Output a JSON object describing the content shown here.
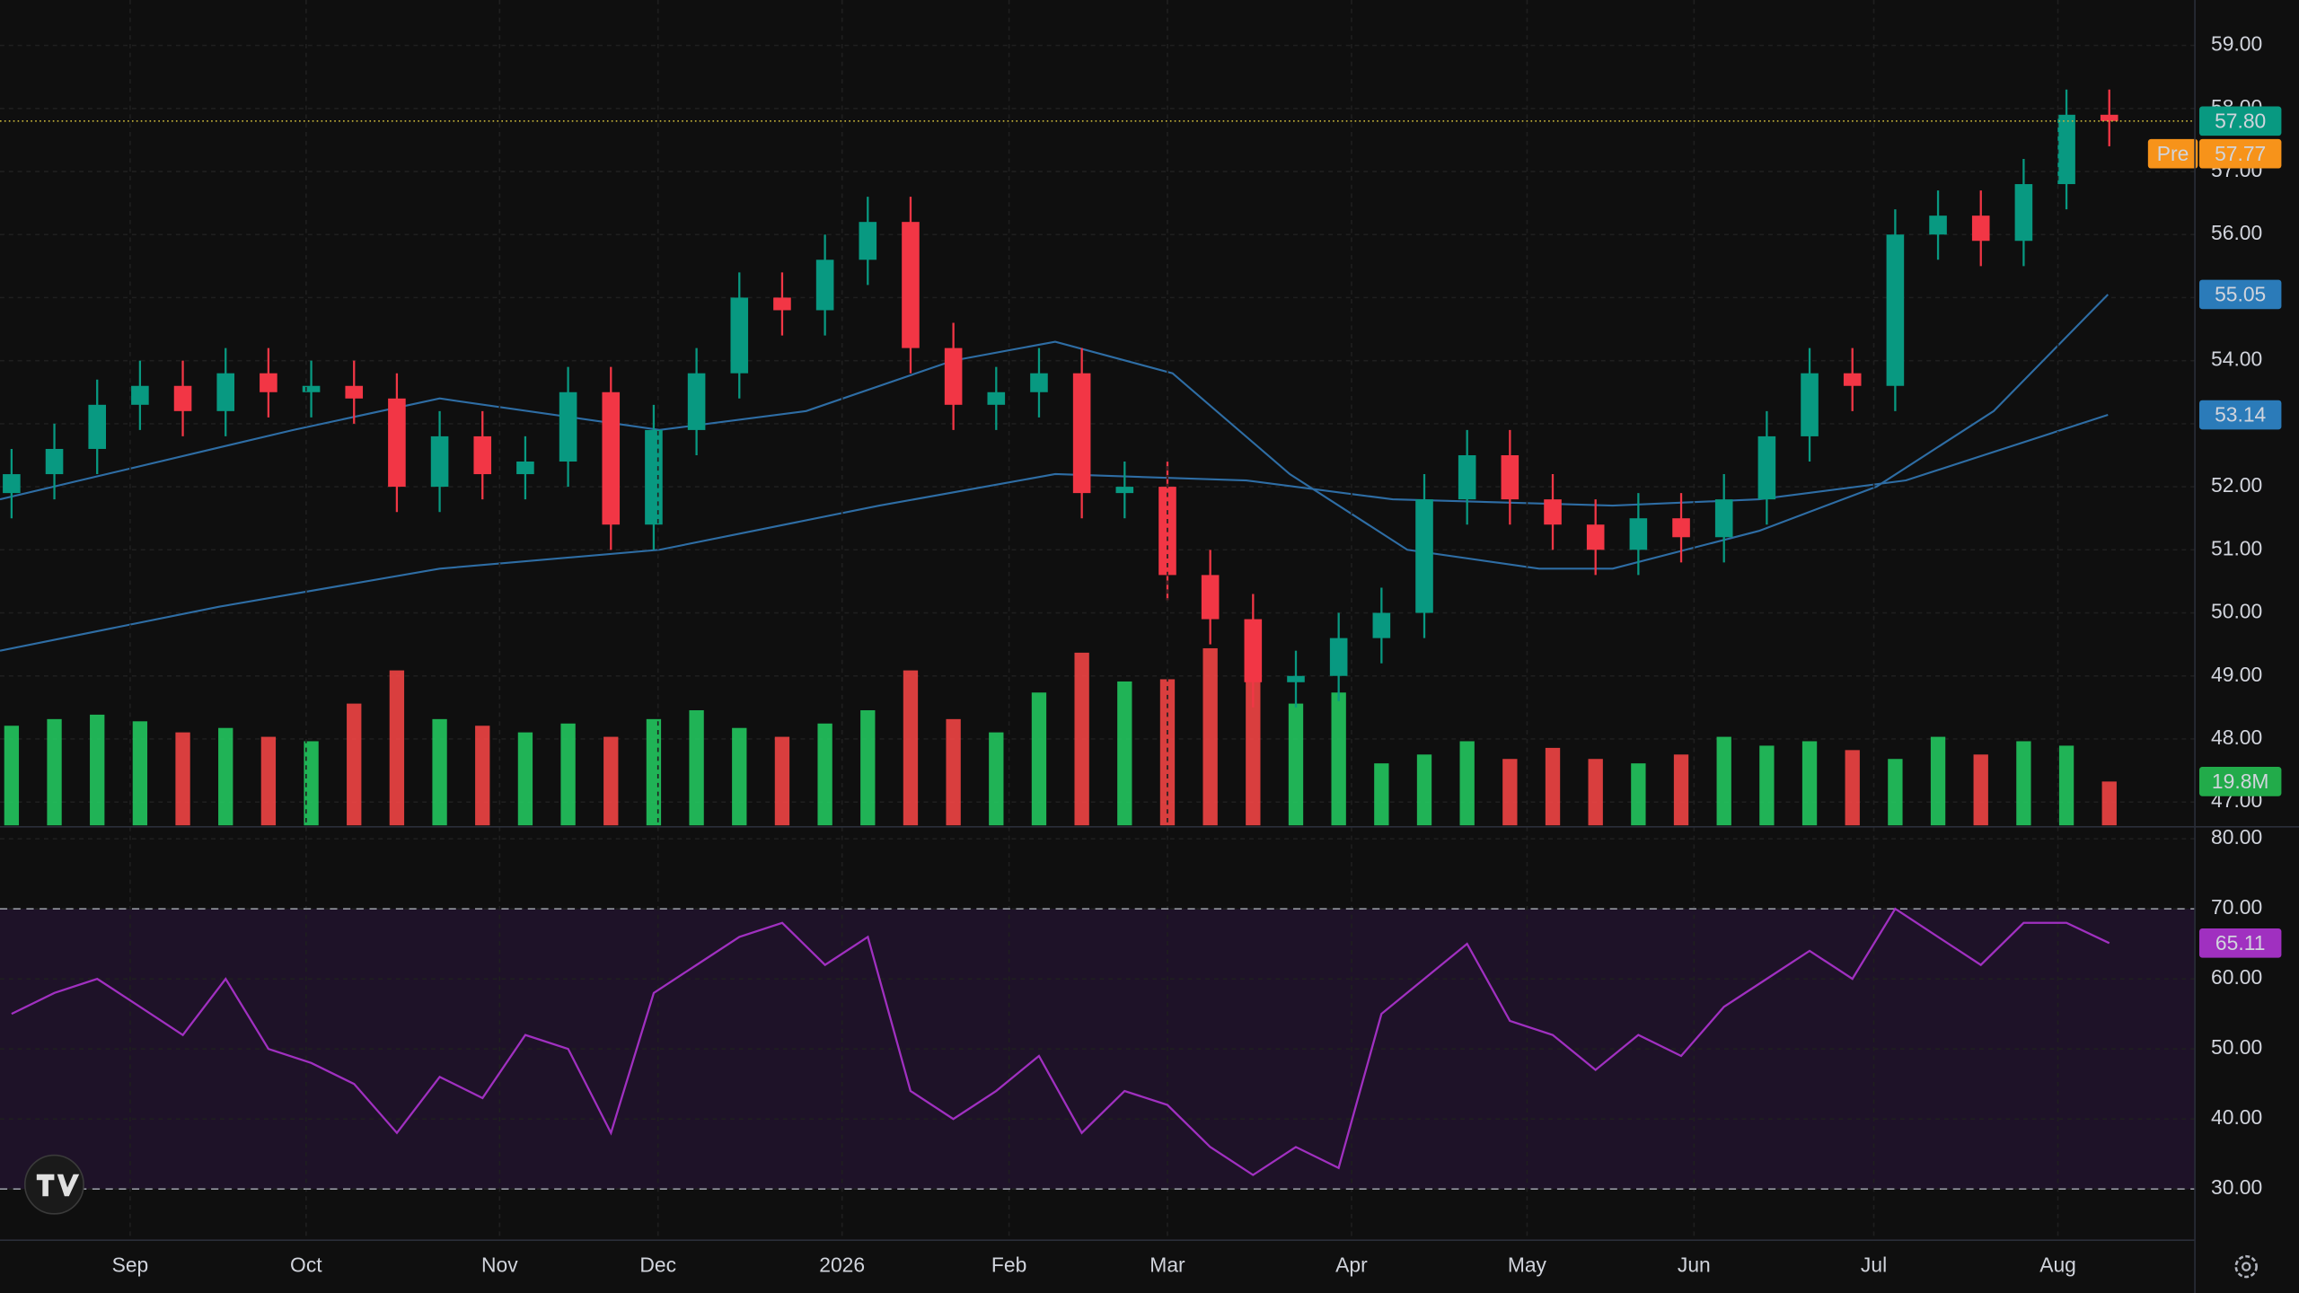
{
  "chart_data": [
    {
      "type": "candlestick",
      "xlim": [
        -0.27,
        51.0
      ],
      "ylim": [
        46.63,
        59.72
      ],
      "yticks": [
        {
          "value": 47,
          "label": "47.00"
        },
        {
          "value": 48,
          "label": "48.00"
        },
        {
          "value": 49,
          "label": "49.00"
        },
        {
          "value": 50,
          "label": "50.00"
        },
        {
          "value": 51,
          "label": "51.00"
        },
        {
          "value": 52,
          "label": "52.00"
        },
        {
          "value": 53,
          "label": "53.00"
        },
        {
          "value": 54,
          "label": "54.00"
        },
        {
          "value": 55,
          "label": "55.00"
        },
        {
          "value": 56,
          "label": "56.00"
        },
        {
          "value": 57,
          "label": "57.00"
        },
        {
          "value": 58,
          "label": "58.00"
        },
        {
          "value": 59,
          "label": "59.00"
        }
      ],
      "grid": true,
      "up_color": "#089981",
      "down_color": "#f23645",
      "open": [
        51.9,
        52.2,
        52.6,
        53.3,
        53.6,
        53.2,
        53.8,
        53.5,
        53.6,
        53.4,
        52.0,
        52.8,
        52.2,
        52.4,
        53.5,
        51.4,
        52.9,
        53.8,
        55.0,
        54.8,
        55.6,
        56.2,
        54.2,
        53.3,
        53.5,
        53.8,
        51.9,
        52.0,
        50.6,
        49.9,
        48.9,
        49.0,
        49.6,
        50.0,
        51.8,
        52.5,
        51.8,
        51.4,
        51.0,
        51.5,
        51.2,
        51.8,
        52.8,
        53.8,
        53.6,
        56.0,
        56.3,
        55.9,
        56.8,
        57.9
      ],
      "high": [
        52.6,
        53.0,
        53.7,
        54.0,
        54.0,
        54.2,
        54.2,
        54.0,
        54.0,
        53.8,
        53.2,
        53.2,
        52.8,
        53.9,
        53.9,
        53.3,
        54.2,
        55.4,
        55.4,
        56.0,
        56.6,
        56.6,
        54.6,
        53.9,
        54.2,
        54.2,
        52.4,
        52.4,
        51.0,
        50.3,
        49.4,
        50.0,
        50.4,
        52.2,
        52.9,
        52.9,
        52.2,
        51.8,
        51.9,
        51.9,
        52.2,
        53.2,
        54.2,
        54.2,
        56.4,
        56.7,
        56.7,
        57.2,
        58.3,
        58.3
      ],
      "low": [
        51.5,
        51.8,
        52.2,
        52.9,
        52.8,
        52.8,
        53.1,
        53.1,
        53.0,
        51.6,
        51.6,
        51.8,
        51.8,
        52.0,
        51.0,
        51.0,
        52.5,
        53.4,
        54.4,
        54.4,
        55.2,
        53.8,
        52.9,
        52.9,
        53.1,
        51.5,
        51.5,
        50.2,
        49.5,
        48.5,
        48.5,
        48.6,
        49.2,
        49.6,
        51.4,
        51.4,
        51.0,
        50.6,
        50.6,
        50.8,
        50.8,
        51.4,
        52.4,
        53.2,
        53.2,
        55.6,
        55.5,
        55.5,
        56.4,
        57.4
      ],
      "close": [
        52.2,
        52.6,
        53.3,
        53.6,
        53.2,
        53.8,
        53.5,
        53.6,
        53.4,
        52.0,
        52.8,
        52.2,
        52.4,
        53.5,
        51.4,
        52.9,
        53.8,
        55.0,
        54.8,
        55.6,
        56.2,
        54.2,
        53.3,
        53.5,
        53.8,
        51.9,
        52.0,
        50.6,
        49.9,
        48.9,
        49.0,
        49.6,
        50.0,
        51.8,
        52.5,
        51.8,
        51.4,
        51.0,
        51.5,
        51.2,
        51.8,
        52.8,
        53.8,
        53.6,
        56.0,
        56.3,
        55.9,
        56.8,
        57.9,
        57.8
      ],
      "series": [
        {
          "color": "#2e6da4",
          "label_color": "#2b7bb9",
          "x": [
            -0.27,
            6.58,
            10.0,
            15.14,
            18.56,
            21.99,
            24.38,
            27.12,
            29.86,
            32.6,
            35.68,
            37.4,
            40.82,
            43.56,
            46.3,
            48.97
          ],
          "values": [
            51.8,
            52.9,
            53.4,
            52.9,
            53.2,
            54.0,
            54.3,
            53.8,
            52.2,
            51.0,
            50.7,
            50.7,
            51.3,
            52.0,
            53.2,
            55.05
          ]
        },
        {
          "color": "#2e6da4",
          "label_color": "#2b7bb9",
          "x": [
            -0.27,
            4.86,
            10.0,
            15.14,
            20.27,
            24.38,
            28.84,
            32.26,
            37.4,
            40.82,
            44.25,
            48.97
          ],
          "values": [
            49.4,
            50.1,
            50.7,
            51.0,
            51.7,
            52.2,
            52.1,
            51.8,
            51.7,
            51.8,
            52.1,
            53.14
          ]
        }
      ],
      "volume": {
        "vlim": [
          0,
          100
        ],
        "up_color": "#22c55e",
        "down_color": "#ef4444",
        "last_label": "19.8M",
        "label_color": "#22ab4a",
        "values": [
          45,
          48,
          50,
          47,
          42,
          44,
          40,
          38,
          55,
          70,
          48,
          45,
          42,
          46,
          40,
          48,
          52,
          44,
          40,
          46,
          52,
          70,
          48,
          42,
          60,
          78,
          65,
          66,
          80,
          72,
          55,
          60,
          28,
          32,
          38,
          30,
          35,
          30,
          28,
          32,
          40,
          36,
          38,
          34,
          30,
          40,
          32,
          38,
          36,
          19.8
        ]
      },
      "price_line": {
        "value": 57.8,
        "label": "57.80",
        "color": "#089981",
        "line_color": "#c9b63c"
      },
      "premarket": {
        "tag": "Pre",
        "value": 57.77,
        "color": "#f7931a"
      }
    },
    {
      "type": "line",
      "xlim": [
        -0.27,
        51.0
      ],
      "xticks": [
        {
          "value": 2.77,
          "label": "Sep"
        },
        {
          "value": 6.88,
          "label": "Oct"
        },
        {
          "value": 11.4,
          "label": "Nov"
        },
        {
          "value": 15.1,
          "label": "Dec"
        },
        {
          "value": 19.4,
          "label": "2026"
        },
        {
          "value": 23.3,
          "label": "Feb"
        },
        {
          "value": 27.0,
          "label": "Mar"
        },
        {
          "value": 31.3,
          "label": "Apr"
        },
        {
          "value": 35.4,
          "label": "May"
        },
        {
          "value": 39.3,
          "label": "Jun"
        },
        {
          "value": 43.5,
          "label": "Jul"
        },
        {
          "value": 47.8,
          "label": "Aug"
        }
      ],
      "ylim": [
        22.9,
        81.5
      ],
      "yticks": [
        {
          "value": 30,
          "label": "30.00"
        },
        {
          "value": 40,
          "label": "40.00"
        },
        {
          "value": 50,
          "label": "50.00"
        },
        {
          "value": 60,
          "label": "60.00"
        },
        {
          "value": 70,
          "label": "70.00"
        },
        {
          "value": 80,
          "label": "80.00"
        }
      ],
      "grid": true,
      "band": [
        30,
        70
      ],
      "band_color": "#1e1228",
      "color": "#a030c0",
      "values": [
        55,
        58,
        60,
        56,
        52,
        60,
        50,
        48,
        45,
        38,
        46,
        43,
        52,
        50,
        38,
        58,
        62,
        66,
        68,
        62,
        66,
        44,
        40,
        44,
        49,
        38,
        44,
        42,
        36,
        32,
        36,
        33,
        55,
        60,
        65,
        54,
        52,
        47,
        52,
        49,
        56,
        60,
        64,
        60,
        70,
        66,
        62,
        68,
        68,
        65.11
      ]
    }
  ]
}
